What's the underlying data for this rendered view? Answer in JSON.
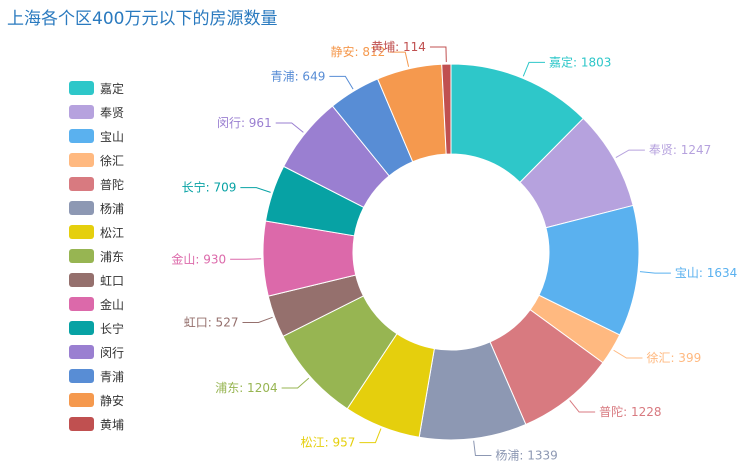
{
  "chart_data": {
    "type": "pie",
    "title": "上海各个区400万元以下的房源数量",
    "donut": true,
    "legend": {
      "position": "left"
    },
    "slices": [
      {
        "name": "嘉定",
        "value": 1803,
        "color": "#2ec7c9"
      },
      {
        "name": "奉贤",
        "value": 1247,
        "color": "#b6a2de"
      },
      {
        "name": "宝山",
        "value": 1634,
        "color": "#5ab1ef"
      },
      {
        "name": "徐汇",
        "value": 399,
        "color": "#ffb980"
      },
      {
        "name": "普陀",
        "value": 1228,
        "color": "#d87a80"
      },
      {
        "name": "杨浦",
        "value": 1339,
        "color": "#8d98b3"
      },
      {
        "name": "松江",
        "value": 957,
        "color": "#e5cf0d"
      },
      {
        "name": "浦东",
        "value": 1204,
        "color": "#97b552"
      },
      {
        "name": "虹口",
        "value": 527,
        "color": "#95706d"
      },
      {
        "name": "金山",
        "value": 930,
        "color": "#dc69aa"
      },
      {
        "name": "长宁",
        "value": 709,
        "color": "#07a2a4"
      },
      {
        "name": "闵行",
        "value": 961,
        "color": "#9a7fd1"
      },
      {
        "name": "青浦",
        "value": 649,
        "color": "#588dd5"
      },
      {
        "name": "静安",
        "value": 812,
        "color": "#f5994e"
      },
      {
        "name": "黄埔",
        "value": 114,
        "color": "#c05050"
      }
    ]
  }
}
